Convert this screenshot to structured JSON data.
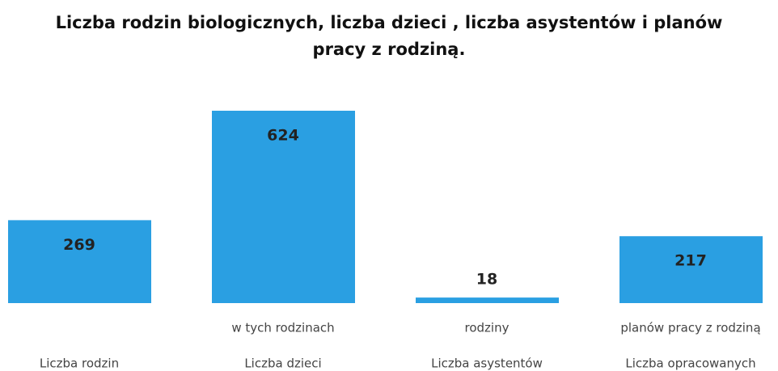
{
  "chart_data": {
    "type": "bar",
    "title": "Liczba rodzin biologicznych, liczba dzieci , liczba asystentów i planów pracy z rodziną.",
    "categories": [
      "Liczba rodzin",
      "Liczba dzieci",
      "Liczba asystentów",
      "Liczba opracowanych"
    ],
    "category_sublabels": [
      null,
      "w tych rodzinach",
      "rodziny",
      "planów pracy z rodziną"
    ],
    "values": [
      269,
      624,
      18,
      217
    ],
    "color": "#2a9fe2",
    "ylim": [
      0,
      700
    ]
  }
}
